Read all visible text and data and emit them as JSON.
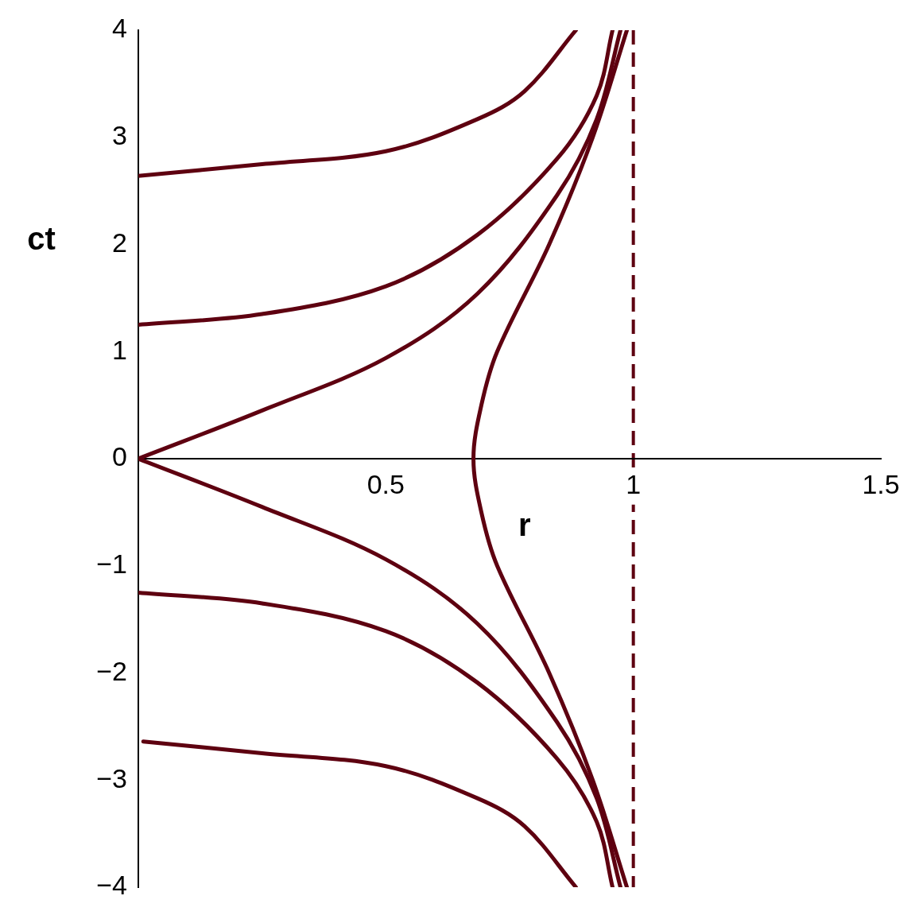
{
  "chart_data": {
    "type": "line",
    "xlabel": "r",
    "ylabel": "ct",
    "xlim": [
      0,
      1.5
    ],
    "ylim": [
      -4,
      4
    ],
    "xticks": [
      0.5,
      1,
      1.5
    ],
    "yticks": [
      {
        "value": -4,
        "label": "−4"
      },
      {
        "value": -3,
        "label": "−3"
      },
      {
        "value": -2,
        "label": "−2"
      },
      {
        "value": -1,
        "label": "−1"
      },
      0,
      1,
      2,
      3,
      4
    ],
    "grid": false,
    "legend": false,
    "marker": "none",
    "line_style": "solid",
    "series": [
      {
        "color": "#5e0010",
        "x": [
          0,
          0.25,
          0.5,
          0.685,
          0.78,
          0.884
        ],
        "values": [
          2.64,
          2.75,
          2.87,
          3.17,
          3.43,
          4
        ]
      },
      {
        "color": "#5e0010",
        "x": [
          0,
          0.25,
          0.5,
          0.685,
          0.846,
          0.926,
          0.958
        ],
        "values": [
          1.25,
          1.35,
          1.61,
          2.09,
          2.8,
          3.39,
          4
        ]
      },
      {
        "color": "#5e0010",
        "x": [
          0,
          0.25,
          0.5,
          0.685,
          0.846,
          0.926,
          0.974
        ],
        "values": [
          0,
          0.45,
          0.94,
          1.54,
          2.46,
          3.17,
          4
        ]
      },
      {
        "color": "#5e0010",
        "x": [
          0.987,
          0.918,
          0.83,
          0.725,
          0.693,
          0.677,
          0.693,
          0.725,
          0.83,
          0.918,
          0.987
        ],
        "values": [
          4,
          3,
          2,
          1,
          0.5,
          0,
          -0.5,
          -1,
          -2,
          -3,
          -4
        ]
      },
      {
        "color": "#5e0010",
        "x": [
          0,
          0.25,
          0.5,
          0.685,
          0.846,
          0.926,
          0.974
        ],
        "values": [
          0,
          -0.45,
          -0.94,
          -1.54,
          -2.46,
          -3.17,
          -4
        ]
      },
      {
        "color": "#5e0010",
        "x": [
          0,
          0.25,
          0.5,
          0.685,
          0.846,
          0.926,
          0.958
        ],
        "values": [
          -1.25,
          -1.35,
          -1.61,
          -2.09,
          -2.8,
          -3.39,
          -4
        ]
      },
      {
        "color": "#5e0010",
        "x": [
          0.01,
          0.25,
          0.5,
          0.685,
          0.78,
          0.884
        ],
        "values": [
          -2.64,
          -2.75,
          -2.87,
          -3.17,
          -3.43,
          -4
        ]
      }
    ],
    "ref_lines": [
      {
        "axis": "x",
        "value": 1,
        "color": "#5e0010",
        "line_style": "dashed"
      }
    ]
  }
}
